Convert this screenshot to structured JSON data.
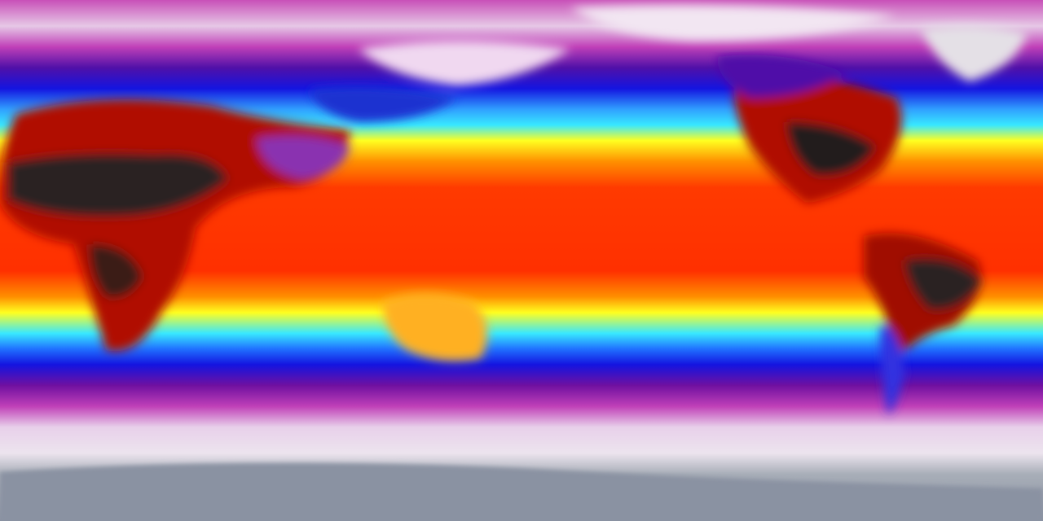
{
  "map": {
    "projection": "equirectangular",
    "variable_palette": [
      "#8a92a2",
      "#e8e0ea",
      "#c040b8",
      "#7010a0",
      "#1414e0",
      "#30e8ff",
      "#ffff20",
      "#ff9000",
      "#ff3000",
      "#1a1414"
    ],
    "colors": {
      "polar_gray": "#8a92a2",
      "ice_white": "#ece4ee",
      "magenta": "#c040b8",
      "purple": "#6a10a0",
      "blue": "#1414e0",
      "cyan": "#38e8ff",
      "yellow": "#ffff20",
      "orange": "#ff9000",
      "red": "#ff3000",
      "dark_hot": "#1e1818"
    }
  }
}
